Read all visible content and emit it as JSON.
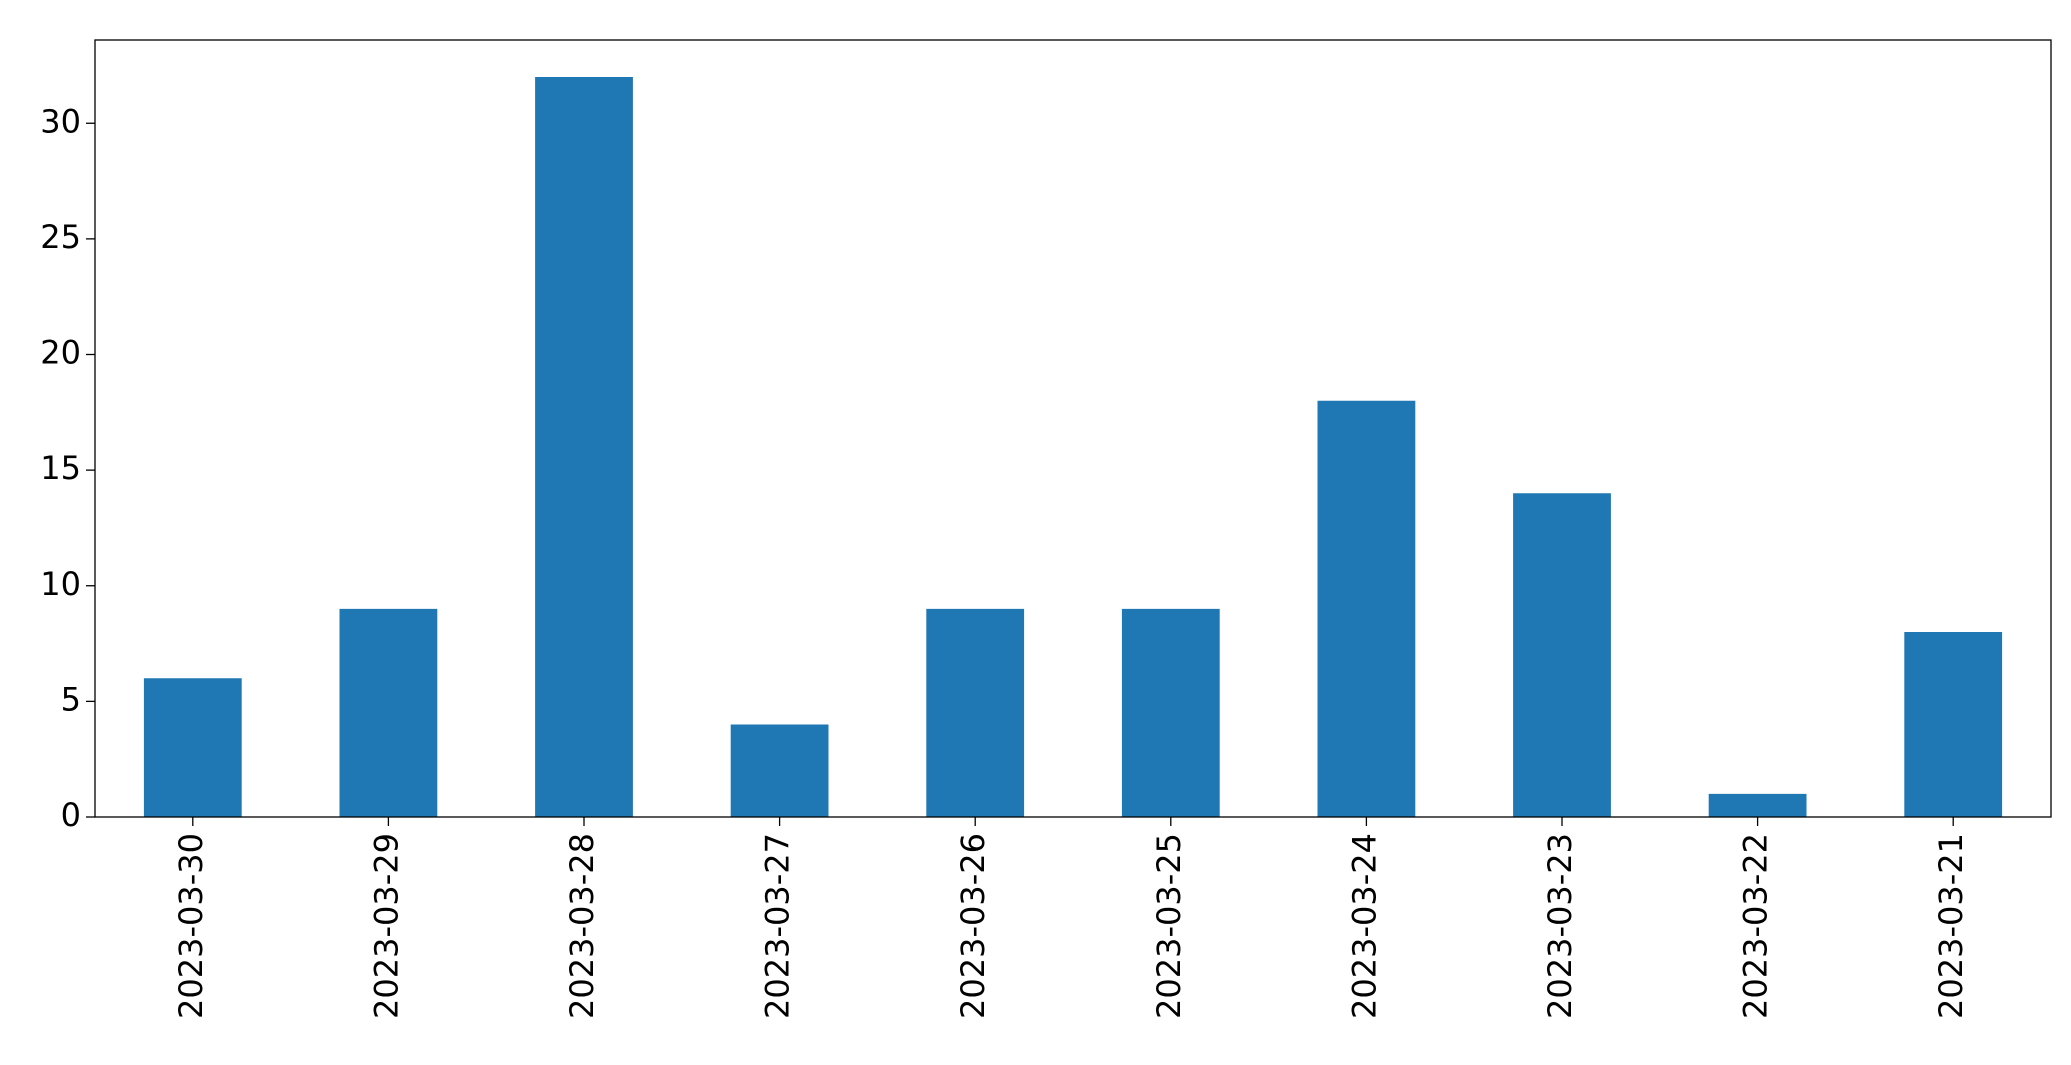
{
  "chart_data": {
    "type": "bar",
    "categories": [
      "2023-03-30",
      "2023-03-29",
      "2023-03-28",
      "2023-03-27",
      "2023-03-26",
      "2023-03-25",
      "2023-03-24",
      "2023-03-23",
      "2023-03-22",
      "2023-03-21"
    ],
    "values": [
      6,
      9,
      32,
      4,
      9,
      9,
      18,
      14,
      1,
      8
    ],
    "color": "#1f77b4",
    "ylim": [
      0,
      33.6
    ],
    "yticks": [
      0,
      5,
      10,
      15,
      20,
      25,
      30
    ],
    "grid": false
  }
}
